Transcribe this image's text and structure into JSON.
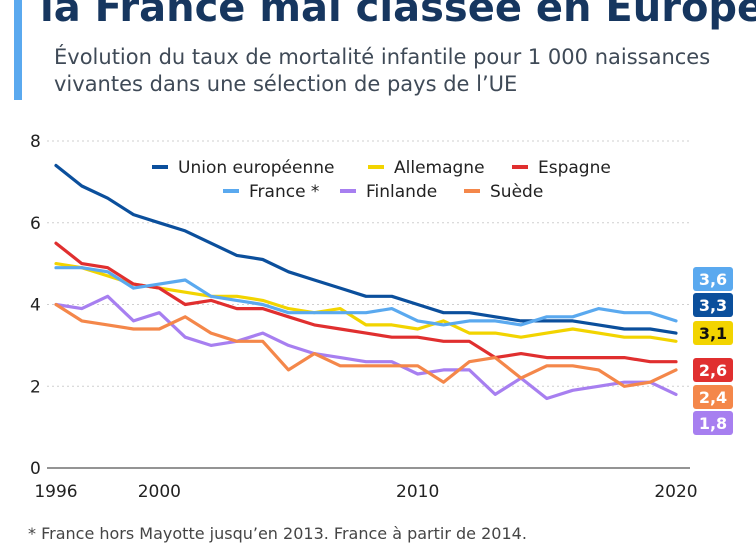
{
  "header": {
    "title": "la France mal classée en Europe",
    "subtitle": "Évolution du taux de mortalité infantile pour 1 000 naissances vivantes dans une sélection de pays de l’UE"
  },
  "footnote": "* France hors Mayotte jusqu’en 2013. France à partir de 2014.",
  "chart_data": {
    "type": "line",
    "title": "la France mal classée en Europe",
    "subtitle": "Évolution du taux de mortalité infantile pour 1 000 naissances vivantes dans une sélection de pays de l’UE",
    "xlabel": "",
    "ylabel": "",
    "xlim": [
      1996,
      2020
    ],
    "ylim": [
      0,
      8
    ],
    "x_ticks": [
      1996,
      2000,
      2010,
      2020
    ],
    "y_ticks": [
      0,
      2,
      4,
      6,
      8
    ],
    "grid": "horizontal",
    "legend_position": "top",
    "x": [
      1996,
      1997,
      1998,
      1999,
      2000,
      2001,
      2002,
      2003,
      2004,
      2005,
      2006,
      2007,
      2008,
      2009,
      2010,
      2011,
      2012,
      2013,
      2014,
      2015,
      2016,
      2017,
      2018,
      2019,
      2020
    ],
    "series": [
      {
        "name": "Union européenne",
        "legend_label": "Union européenne",
        "color": "#0b4f9c",
        "end_label": "3,3",
        "values": [
          7.4,
          6.9,
          6.6,
          6.2,
          6.0,
          5.8,
          5.5,
          5.2,
          5.1,
          4.8,
          4.6,
          4.4,
          4.2,
          4.2,
          4.0,
          3.8,
          3.8,
          3.7,
          3.6,
          3.6,
          3.6,
          3.5,
          3.4,
          3.4,
          3.3
        ]
      },
      {
        "name": "Allemagne",
        "legend_label": "Allemagne",
        "color": "#f2d400",
        "end_label": "3,1",
        "values": [
          5.0,
          4.9,
          4.7,
          4.5,
          4.4,
          4.3,
          4.2,
          4.2,
          4.1,
          3.9,
          3.8,
          3.9,
          3.5,
          3.5,
          3.4,
          3.6,
          3.3,
          3.3,
          3.2,
          3.3,
          3.4,
          3.3,
          3.2,
          3.2,
          3.1
        ]
      },
      {
        "name": "Espagne",
        "legend_label": "Espagne",
        "color": "#e02f2f",
        "end_label": "2,6",
        "values": [
          5.5,
          5.0,
          4.9,
          4.5,
          4.4,
          4.0,
          4.1,
          3.9,
          3.9,
          3.7,
          3.5,
          3.4,
          3.3,
          3.2,
          3.2,
          3.1,
          3.1,
          2.7,
          2.8,
          2.7,
          2.7,
          2.7,
          2.7,
          2.6,
          2.6
        ]
      },
      {
        "name": "France",
        "legend_label": "France *",
        "color": "#5aa9ef",
        "end_label": "3,6",
        "values": [
          4.9,
          4.9,
          4.8,
          4.4,
          4.5,
          4.6,
          4.2,
          4.1,
          4.0,
          3.8,
          3.8,
          3.8,
          3.8,
          3.9,
          3.6,
          3.5,
          3.6,
          3.6,
          3.5,
          3.7,
          3.7,
          3.9,
          3.8,
          3.8,
          3.6
        ]
      },
      {
        "name": "Finlande",
        "legend_label": "Finlande",
        "color": "#a77ff0",
        "end_label": "1,8",
        "values": [
          4.0,
          3.9,
          4.2,
          3.6,
          3.8,
          3.2,
          3.0,
          3.1,
          3.3,
          3.0,
          2.8,
          2.7,
          2.6,
          2.6,
          2.3,
          2.4,
          2.4,
          1.8,
          2.2,
          1.7,
          1.9,
          2.0,
          2.1,
          2.1,
          1.8
        ]
      },
      {
        "name": "Suède",
        "legend_label": "Suède",
        "color": "#f4874a",
        "end_label": "2,4",
        "values": [
          4.0,
          3.6,
          3.5,
          3.4,
          3.4,
          3.7,
          3.3,
          3.1,
          3.1,
          2.4,
          2.8,
          2.5,
          2.5,
          2.5,
          2.5,
          2.1,
          2.6,
          2.7,
          2.2,
          2.5,
          2.5,
          2.4,
          2.0,
          2.1,
          2.4
        ]
      }
    ]
  }
}
